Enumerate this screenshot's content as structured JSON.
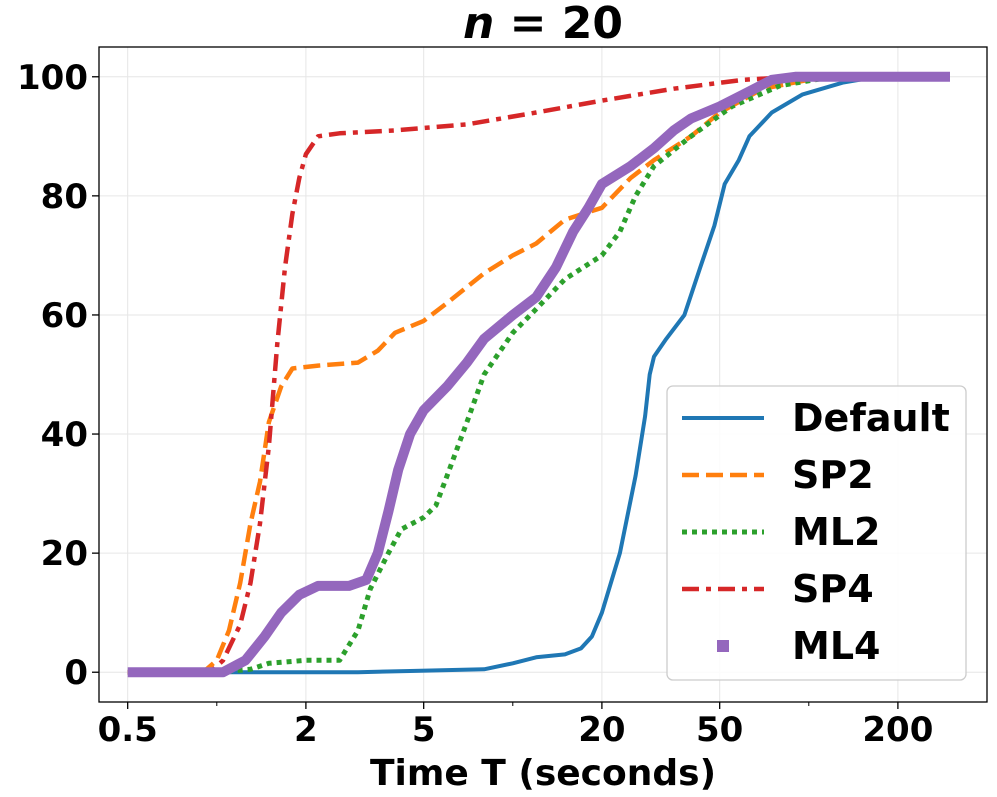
{
  "chart_data": {
    "type": "line",
    "title": "n = 20",
    "title_var": "n",
    "title_rest": " = 20",
    "xlabel": "Time T (seconds)",
    "ylabel": "",
    "xscale": "log",
    "xlim": [
      0.4,
      400
    ],
    "ylim": [
      -5,
      105
    ],
    "xticks": [
      0.5,
      2,
      5,
      20,
      50,
      200
    ],
    "xtick_labels": [
      "0.5",
      "2",
      "5",
      "20",
      "50",
      "200"
    ],
    "yticks": [
      0,
      20,
      40,
      60,
      80,
      100
    ],
    "ytick_labels": [
      "0",
      "20",
      "40",
      "60",
      "80",
      "100"
    ],
    "grid": true,
    "legend_position": "lower-right",
    "series": [
      {
        "name": "Default",
        "color": "#1f77b4",
        "style": "solid",
        "points": [
          [
            0.5,
            0
          ],
          [
            1,
            0
          ],
          [
            2,
            0
          ],
          [
            3,
            0
          ],
          [
            4.5,
            0.2
          ],
          [
            8,
            0.5
          ],
          [
            10,
            1.5
          ],
          [
            12,
            2.5
          ],
          [
            15,
            3
          ],
          [
            17,
            4
          ],
          [
            18.5,
            6
          ],
          [
            20,
            10
          ],
          [
            23,
            20
          ],
          [
            26,
            33
          ],
          [
            28,
            43
          ],
          [
            29,
            50
          ],
          [
            30,
            53
          ],
          [
            33,
            56
          ],
          [
            38,
            60
          ],
          [
            43,
            68
          ],
          [
            48,
            75
          ],
          [
            52,
            82
          ],
          [
            58,
            86
          ],
          [
            63,
            90
          ],
          [
            75,
            94
          ],
          [
            95,
            97
          ],
          [
            130,
            99
          ],
          [
            170,
            100
          ],
          [
            300,
            100
          ]
        ]
      },
      {
        "name": "SP2",
        "color": "#ff7f0e",
        "style": "dashed",
        "points": [
          [
            0.5,
            0
          ],
          [
            0.9,
            0
          ],
          [
            1.0,
            2
          ],
          [
            1.1,
            7
          ],
          [
            1.2,
            15
          ],
          [
            1.3,
            25
          ],
          [
            1.4,
            32
          ],
          [
            1.5,
            42
          ],
          [
            1.65,
            48
          ],
          [
            1.8,
            51
          ],
          [
            2.2,
            51.5
          ],
          [
            3.0,
            52
          ],
          [
            3.5,
            54
          ],
          [
            4.0,
            57
          ],
          [
            5.0,
            59
          ],
          [
            6.0,
            62
          ],
          [
            8.0,
            67
          ],
          [
            10,
            70
          ],
          [
            12,
            72
          ],
          [
            15,
            76
          ],
          [
            20,
            78
          ],
          [
            25,
            83
          ],
          [
            30,
            86
          ],
          [
            40,
            90
          ],
          [
            50,
            94
          ],
          [
            70,
            98
          ],
          [
            100,
            99.5
          ],
          [
            150,
            100
          ],
          [
            300,
            100
          ]
        ]
      },
      {
        "name": "ML2",
        "color": "#2ca02c",
        "style": "dotted",
        "points": [
          [
            0.5,
            0
          ],
          [
            1.0,
            0
          ],
          [
            1.3,
            0.5
          ],
          [
            1.5,
            1.5
          ],
          [
            2.0,
            2
          ],
          [
            2.6,
            2
          ],
          [
            3.0,
            7
          ],
          [
            3.3,
            14
          ],
          [
            3.8,
            20
          ],
          [
            4.2,
            24
          ],
          [
            5.0,
            26
          ],
          [
            5.5,
            28
          ],
          [
            6.0,
            33
          ],
          [
            7.0,
            42
          ],
          [
            8.0,
            50
          ],
          [
            10,
            57
          ],
          [
            12,
            61
          ],
          [
            15,
            66
          ],
          [
            20,
            70
          ],
          [
            23,
            74
          ],
          [
            26,
            80
          ],
          [
            30,
            85
          ],
          [
            40,
            90
          ],
          [
            55,
            95
          ],
          [
            80,
            98.5
          ],
          [
            120,
            100
          ],
          [
            300,
            100
          ]
        ]
      },
      {
        "name": "SP4",
        "color": "#d62728",
        "style": "dashdot",
        "points": [
          [
            0.5,
            0
          ],
          [
            0.95,
            0
          ],
          [
            1.05,
            2
          ],
          [
            1.2,
            8
          ],
          [
            1.3,
            15
          ],
          [
            1.4,
            25
          ],
          [
            1.5,
            38
          ],
          [
            1.6,
            55
          ],
          [
            1.7,
            68
          ],
          [
            1.8,
            77
          ],
          [
            1.9,
            83
          ],
          [
            2.0,
            87
          ],
          [
            2.2,
            90
          ],
          [
            2.6,
            90.5
          ],
          [
            4,
            91
          ],
          [
            7,
            92
          ],
          [
            12,
            94
          ],
          [
            20,
            96
          ],
          [
            35,
            98
          ],
          [
            60,
            99.5
          ],
          [
            90,
            100
          ],
          [
            300,
            100
          ]
        ]
      },
      {
        "name": "ML4",
        "color": "#9467bd",
        "style": "squares",
        "points": [
          [
            0.5,
            0
          ],
          [
            1.05,
            0
          ],
          [
            1.25,
            2
          ],
          [
            1.45,
            6
          ],
          [
            1.65,
            10
          ],
          [
            1.9,
            13
          ],
          [
            2.2,
            14.5
          ],
          [
            2.8,
            14.5
          ],
          [
            3.2,
            15.5
          ],
          [
            3.5,
            20
          ],
          [
            3.8,
            27
          ],
          [
            4.1,
            34
          ],
          [
            4.5,
            40
          ],
          [
            5.0,
            44
          ],
          [
            6.0,
            48
          ],
          [
            7.0,
            52
          ],
          [
            8.0,
            56
          ],
          [
            10,
            60
          ],
          [
            12,
            63
          ],
          [
            14,
            68
          ],
          [
            16,
            74
          ],
          [
            18,
            78
          ],
          [
            20,
            82
          ],
          [
            25,
            85
          ],
          [
            30,
            88
          ],
          [
            35,
            91
          ],
          [
            40,
            93
          ],
          [
            50,
            95
          ],
          [
            60,
            97
          ],
          [
            75,
            99.5
          ],
          [
            90,
            100
          ],
          [
            300,
            100
          ]
        ]
      }
    ]
  }
}
